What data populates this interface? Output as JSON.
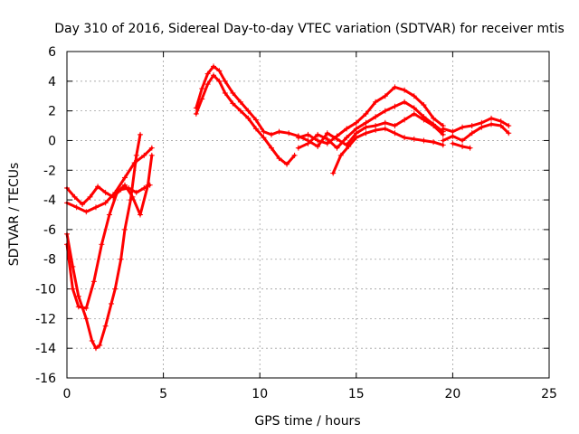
{
  "chart_data": {
    "type": "scatter",
    "title": "Day 310 of 2016, Sidereal Day-to-day VTEC variation (SDTVAR) for receiver mtis",
    "xlabel": "GPS time / hours",
    "ylabel": "SDTVAR / TECUs",
    "xlim": [
      0,
      25
    ],
    "ylim": [
      -16,
      6
    ],
    "x_ticks": [
      "0",
      "5",
      "10",
      "15",
      "20",
      "25"
    ],
    "y_ticks": [
      "-16",
      "-14",
      "-12",
      "-10",
      "-8",
      "-6",
      "-4",
      "-2",
      "0",
      "2",
      "4",
      "6"
    ],
    "grid": true,
    "marker": "plus",
    "color": "#ff0000",
    "series": [
      {
        "x": [
          0,
          0.3,
          0.6,
          1.0,
          1.3,
          1.5,
          1.7,
          2.0,
          2.3,
          2.5,
          2.8,
          3.0,
          3.3,
          3.6,
          3.8
        ],
        "y": [
          -6.3,
          -8.5,
          -10.5,
          -12,
          -13.5,
          -14,
          -13.8,
          -12.5,
          -11,
          -10,
          -8,
          -6,
          -4,
          -1,
          0.4
        ]
      },
      {
        "x": [
          0,
          0.3,
          0.6,
          1.0,
          1.4,
          1.8,
          2.2,
          2.6,
          3.0,
          3.4,
          3.8,
          4.2,
          4.4
        ],
        "y": [
          -7,
          -10,
          -11.2,
          -11.3,
          -9.5,
          -7,
          -5,
          -3.5,
          -3,
          -3.8,
          -5,
          -3,
          -1
        ]
      },
      {
        "x": [
          0,
          0.4,
          0.8,
          1.2,
          1.6,
          2.0,
          2.4,
          2.8,
          3.2,
          3.6,
          4.0,
          4.3
        ],
        "y": [
          -3.2,
          -3.8,
          -4.3,
          -3.8,
          -3.1,
          -3.5,
          -3.8,
          -3.3,
          -3.2,
          -3.5,
          -3.2,
          -3
        ]
      },
      {
        "x": [
          0,
          0.5,
          1.0,
          1.5,
          2.0,
          2.5,
          3.0,
          3.5,
          4.0,
          4.4
        ],
        "y": [
          -4.2,
          -4.5,
          -4.8,
          -4.5,
          -4.2,
          -3.5,
          -2.5,
          -1.5,
          -1,
          -0.5
        ]
      },
      {
        "x": [
          6.7,
          7.0,
          7.3,
          7.6,
          7.9,
          8.2,
          8.6,
          9.0,
          9.4,
          9.8,
          10.2,
          10.6,
          11.0,
          11.5,
          12.0
        ],
        "y": [
          2.2,
          3.5,
          4.5,
          5.0,
          4.7,
          4.0,
          3.2,
          2.6,
          2.0,
          1.4,
          0.6,
          0.4,
          0.6,
          0.5,
          0.3
        ]
      },
      {
        "x": [
          6.7,
          7.0,
          7.3,
          7.6,
          7.9,
          8.2,
          8.6,
          9.0,
          9.4,
          9.8,
          10.2,
          10.6,
          11.0,
          11.4,
          11.8
        ],
        "y": [
          1.8,
          2.8,
          3.8,
          4.4,
          4.0,
          3.2,
          2.5,
          2.0,
          1.5,
          0.8,
          0.2,
          -0.5,
          -1.2,
          -1.6,
          -1.0
        ]
      },
      {
        "x": [
          12.0,
          12.5,
          13.0,
          13.5,
          14.0,
          14.5,
          15.0,
          15.5,
          16.0,
          16.5,
          17.0,
          17.5,
          18.0,
          18.5,
          19.0,
          19.5
        ],
        "y": [
          0.2,
          0.4,
          0.0,
          -0.2,
          0.3,
          0.8,
          1.2,
          1.8,
          2.6,
          3.0,
          3.6,
          3.4,
          3.0,
          2.4,
          1.5,
          1.0
        ]
      },
      {
        "x": [
          12.0,
          12.5,
          13.0,
          13.5,
          14.0,
          14.5,
          15.0,
          15.5,
          16.0,
          16.5,
          17.0,
          17.5,
          18.0,
          18.5,
          19.0,
          19.5
        ],
        "y": [
          -0.5,
          -0.2,
          0.4,
          0.1,
          -0.5,
          0.2,
          0.8,
          1.2,
          1.6,
          2.0,
          2.3,
          2.6,
          2.2,
          1.6,
          1.1,
          0.6
        ]
      },
      {
        "x": [
          12.0,
          12.5,
          13.0,
          13.5,
          14.0,
          14.5,
          15.0,
          15.5,
          16.0,
          16.5,
          17.0,
          17.5,
          18.0,
          18.5,
          19.0,
          19.5
        ],
        "y": [
          0.3,
          0.0,
          -0.4,
          0.5,
          0.1,
          -0.3,
          0.5,
          0.9,
          1.0,
          1.2,
          1.0,
          1.4,
          1.8,
          1.4,
          1.0,
          0.4
        ]
      },
      {
        "x": [
          13.8,
          14.2,
          14.6,
          15.0,
          15.5,
          16.0,
          16.5,
          17.0,
          17.5,
          18.0,
          18.5,
          19.0,
          19.5
        ],
        "y": [
          -2.2,
          -1.0,
          -0.4,
          0.2,
          0.5,
          0.7,
          0.8,
          0.5,
          0.2,
          0.1,
          0.0,
          -0.1,
          -0.3
        ]
      },
      {
        "x": [
          19.5,
          20.0,
          20.5,
          21.0,
          21.5,
          22.0,
          22.5,
          22.9
        ],
        "y": [
          0.8,
          0.6,
          0.9,
          1.0,
          1.2,
          1.5,
          1.3,
          1.0
        ]
      },
      {
        "x": [
          19.5,
          20.0,
          20.5,
          21.0,
          21.5,
          22.0,
          22.5,
          22.9
        ],
        "y": [
          0.0,
          0.3,
          0.0,
          0.5,
          0.9,
          1.1,
          1.0,
          0.5
        ]
      },
      {
        "x": [
          20.0,
          20.5,
          20.9
        ],
        "y": [
          -0.2,
          -0.4,
          -0.5
        ]
      }
    ]
  }
}
